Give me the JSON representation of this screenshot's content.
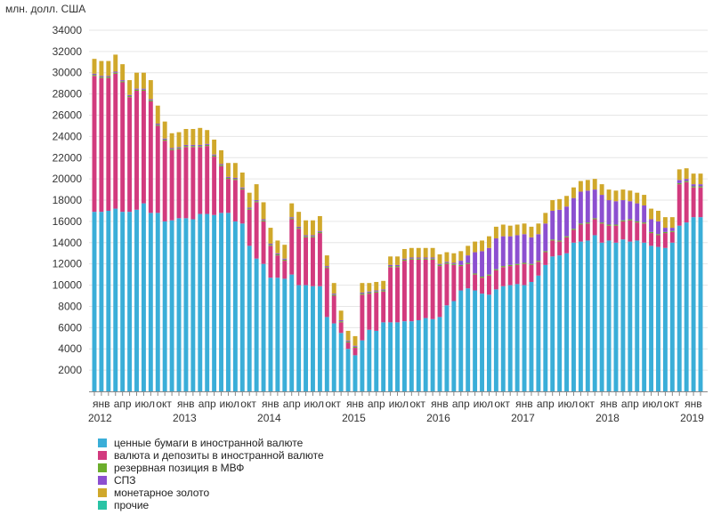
{
  "chart_data": {
    "type": "bar",
    "stacked": true,
    "ylabel": "млн. долл. США",
    "ylim": [
      0,
      35000
    ],
    "yticks": [
      2000,
      4000,
      6000,
      8000,
      10000,
      12000,
      14000,
      16000,
      18000,
      20000,
      22000,
      24000,
      26000,
      28000,
      30000,
      32000,
      34000
    ],
    "grid": true,
    "legend_position": "bottom-left",
    "month_labels": [
      "янв",
      "апр",
      "июл",
      "окт"
    ],
    "years": [
      "2012",
      "2013",
      "2014",
      "2015",
      "2016",
      "2017",
      "2018",
      "2019"
    ],
    "categories": [
      "2012-01",
      "2012-02",
      "2012-03",
      "2012-04",
      "2012-05",
      "2012-06",
      "2012-07",
      "2012-08",
      "2012-09",
      "2012-10",
      "2012-11",
      "2012-12",
      "2013-01",
      "2013-02",
      "2013-03",
      "2013-04",
      "2013-05",
      "2013-06",
      "2013-07",
      "2013-08",
      "2013-09",
      "2013-10",
      "2013-11",
      "2013-12",
      "2014-01",
      "2014-02",
      "2014-03",
      "2014-04",
      "2014-05",
      "2014-06",
      "2014-07",
      "2014-08",
      "2014-09",
      "2014-10",
      "2014-11",
      "2014-12",
      "2015-01",
      "2015-02",
      "2015-03",
      "2015-04",
      "2015-05",
      "2015-06",
      "2015-07",
      "2015-08",
      "2015-09",
      "2015-10",
      "2015-11",
      "2015-12",
      "2016-01",
      "2016-02",
      "2016-03",
      "2016-04",
      "2016-05",
      "2016-06",
      "2016-07",
      "2016-08",
      "2016-09",
      "2016-10",
      "2016-11",
      "2016-12",
      "2017-01",
      "2017-02",
      "2017-03",
      "2017-04",
      "2017-05",
      "2017-06",
      "2017-07",
      "2017-08",
      "2017-09",
      "2017-10",
      "2017-11",
      "2017-12",
      "2018-01",
      "2018-02",
      "2018-03",
      "2018-04",
      "2018-05",
      "2018-06",
      "2018-07",
      "2018-08",
      "2018-09",
      "2018-10",
      "2018-11",
      "2018-12",
      "2019-01",
      "2019-02",
      "2019-03"
    ],
    "series": [
      {
        "name": "ценные бумаги в иностранной валюте",
        "color": "#3aaed8",
        "values": [
          16900,
          16900,
          17000,
          17200,
          16900,
          16900,
          17100,
          17700,
          16800,
          16800,
          16000,
          16100,
          16300,
          16300,
          16200,
          16700,
          16700,
          16600,
          16800,
          16800,
          16000,
          15800,
          13700,
          12500,
          12000,
          10700,
          10700,
          10600,
          11000,
          10000,
          10000,
          9900,
          9900,
          7000,
          6400,
          5500,
          4000,
          3400,
          4800,
          5800,
          5700,
          6500,
          6500,
          6500,
          6600,
          6600,
          6700,
          6900,
          6800,
          7000,
          8100,
          8500,
          9500,
          9700,
          9500,
          9200,
          9100,
          9600,
          9900,
          10000,
          10100,
          10000,
          10300,
          10900,
          11900,
          12700,
          12800,
          13000,
          14000,
          14100,
          14200,
          14700,
          14000,
          14200,
          14000,
          14300,
          14100,
          14200,
          14000,
          13700,
          13600,
          13500,
          14000,
          15600,
          15900,
          16400,
          16400
        ]
      },
      {
        "name": "валюта и депозиты в иностранной валюте",
        "color": "#d23a7e",
        "values": [
          12800,
          12600,
          12500,
          12700,
          12200,
          10800,
          11200,
          10600,
          10500,
          8200,
          7600,
          6600,
          6500,
          6700,
          6800,
          6300,
          6400,
          5500,
          4400,
          3200,
          3900,
          3200,
          3400,
          5300,
          4000,
          3000,
          2100,
          1700,
          5200,
          5300,
          4500,
          4600,
          5000,
          4600,
          2600,
          1000,
          600,
          700,
          4300,
          3400,
          3600,
          2900,
          5200,
          5200,
          5700,
          5800,
          5700,
          5500,
          5600,
          4800,
          3900,
          3400,
          2300,
          2300,
          1500,
          1500,
          1800,
          1800,
          1800,
          1800,
          1800,
          2000,
          1600,
          1300,
          1200,
          1500,
          1300,
          1500,
          1200,
          1600,
          1600,
          1500,
          1800,
          1400,
          1600,
          1700,
          2000,
          1700,
          1800,
          1200,
          1100,
          1400,
          1000,
          3900,
          3800,
          2800,
          2800
        ]
      },
      {
        "name": "резервная позиция в МВФ",
        "color": "#6cae2c",
        "values": [
          100,
          100,
          100,
          100,
          100,
          100,
          100,
          100,
          100,
          100,
          100,
          100,
          100,
          100,
          100,
          100,
          100,
          100,
          100,
          100,
          100,
          100,
          100,
          100,
          100,
          100,
          100,
          100,
          100,
          100,
          100,
          100,
          100,
          100,
          100,
          100,
          100,
          100,
          100,
          100,
          100,
          100,
          100,
          100,
          100,
          100,
          100,
          100,
          100,
          100,
          100,
          100,
          100,
          100,
          100,
          100,
          100,
          100,
          100,
          100,
          100,
          100,
          100,
          100,
          100,
          100,
          100,
          100,
          100,
          100,
          100,
          100,
          100,
          100,
          100,
          100,
          100,
          100,
          100,
          100,
          100,
          100,
          100,
          100,
          100,
          100,
          100
        ]
      },
      {
        "name": "СПЗ",
        "color": "#8c4fd0",
        "values": [
          100,
          100,
          100,
          100,
          100,
          100,
          100,
          100,
          100,
          100,
          100,
          100,
          100,
          100,
          100,
          100,
          100,
          100,
          100,
          100,
          100,
          100,
          100,
          100,
          100,
          100,
          100,
          100,
          100,
          100,
          100,
          100,
          100,
          100,
          100,
          100,
          100,
          100,
          100,
          100,
          100,
          100,
          100,
          100,
          100,
          100,
          100,
          100,
          100,
          100,
          100,
          100,
          400,
          700,
          2000,
          2400,
          2500,
          2900,
          2800,
          2700,
          2700,
          2700,
          2500,
          2500,
          2600,
          2700,
          2900,
          2800,
          2900,
          3000,
          3000,
          2700,
          2600,
          2300,
          2200,
          1900,
          1700,
          1700,
          1600,
          1200,
          1200,
          400,
          300,
          300,
          200,
          200,
          200
        ]
      },
      {
        "name": "монетарное золото",
        "color": "#d0a82b",
        "values": [
          1400,
          1400,
          1400,
          1600,
          1500,
          1400,
          1500,
          1500,
          1800,
          1700,
          1600,
          1400,
          1400,
          1500,
          1500,
          1600,
          1300,
          1400,
          1300,
          1300,
          1400,
          1400,
          1400,
          1500,
          1600,
          1500,
          1200,
          1300,
          1300,
          1400,
          1400,
          1400,
          1400,
          1000,
          1000,
          900,
          900,
          900,
          900,
          800,
          800,
          800,
          800,
          800,
          900,
          900,
          900,
          900,
          900,
          900,
          900,
          900,
          900,
          900,
          1000,
          1000,
          1100,
          1100,
          1100,
          1000,
          1000,
          1000,
          1000,
          1000,
          1000,
          1000,
          1000,
          1000,
          1000,
          1000,
          1000,
          1000,
          1000,
          1000,
          1000,
          1000,
          1000,
          1000,
          1000,
          1000,
          1000,
          1000,
          1000,
          1000,
          1000,
          1000,
          1000
        ]
      },
      {
        "name": "прочие",
        "color": "#29c3a5",
        "values": [
          0,
          0,
          0,
          0,
          0,
          0,
          0,
          0,
          0,
          0,
          0,
          0,
          0,
          0,
          0,
          0,
          0,
          0,
          0,
          0,
          0,
          0,
          0,
          0,
          0,
          0,
          0,
          0,
          0,
          0,
          0,
          0,
          0,
          0,
          0,
          0,
          0,
          0,
          0,
          0,
          0,
          0,
          0,
          0,
          0,
          0,
          0,
          0,
          0,
          0,
          0,
          0,
          0,
          0,
          0,
          0,
          0,
          0,
          0,
          0,
          0,
          0,
          0,
          0,
          0,
          0,
          0,
          0,
          0,
          0,
          0,
          0,
          0,
          0,
          0,
          0,
          0,
          0,
          0,
          0,
          0,
          0,
          0,
          0,
          0,
          0,
          0
        ]
      }
    ]
  }
}
